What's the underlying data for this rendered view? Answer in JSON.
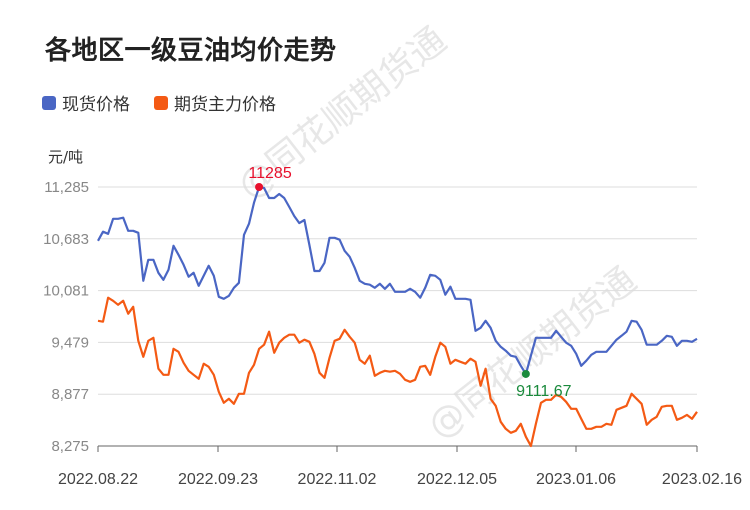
{
  "title": "各地区一级豆油均价走势",
  "legend": [
    {
      "label": "现货价格",
      "color": "#4a66c4"
    },
    {
      "label": "期货主力价格",
      "color": "#f45a14"
    }
  ],
  "unit": "元/吨",
  "watermark": "@同花顺期货通",
  "annotations": {
    "max": {
      "label": "11285",
      "color": "#e8102c"
    },
    "min": {
      "label": "9111.67",
      "color": "#1a8a3c"
    }
  },
  "chart_data": {
    "type": "line",
    "title": "各地区一级豆油均价走势",
    "xlabel": "",
    "ylabel": "元/吨",
    "ylim": [
      8275,
      11285
    ],
    "yticks": [
      "11,285",
      "10,683",
      "10,081",
      "9,479",
      "8,877",
      "8,275"
    ],
    "ytick_values": [
      11285,
      10683,
      10081,
      9479,
      8877,
      8275
    ],
    "xticks": [
      "2022.08.22",
      "2022.09.23",
      "2022.11.02",
      "2022.12.05",
      "2023.01.06",
      "2023.02.16"
    ],
    "grid": true,
    "legend_position": "top-left",
    "series": [
      {
        "name": "现货价格",
        "color": "#4a66c4",
        "max": 11285,
        "min": 9111.67,
        "values": [
          10660,
          10765,
          10741,
          10916,
          10916,
          10928,
          10776,
          10776,
          10753,
          10195,
          10439,
          10439,
          10288,
          10207,
          10323,
          10602,
          10497,
          10381,
          10242,
          10288,
          10137,
          10253,
          10369,
          10253,
          10009,
          9986,
          10021,
          10114,
          10172,
          10730,
          10858,
          11102,
          11285,
          11273,
          11157,
          11157,
          11204,
          11157,
          11052,
          10947,
          10866,
          10901,
          10611,
          10309,
          10309,
          10404,
          10695,
          10695,
          10672,
          10544,
          10474,
          10346,
          10195,
          10160,
          10149,
          10114,
          10160,
          10102,
          10160,
          10067,
          10067,
          10067,
          10102,
          10067,
          9998,
          10114,
          10265,
          10253,
          10207,
          10033,
          10126,
          9986,
          9986,
          9986,
          9974,
          9614,
          9649,
          9730,
          9649,
          9498,
          9428,
          9382,
          9324,
          9312,
          9207,
          9112,
          9324,
          9533,
          9533,
          9533,
          9533,
          9614,
          9544,
          9475,
          9440,
          9347,
          9207,
          9266,
          9335,
          9370,
          9370,
          9370,
          9440,
          9510,
          9556,
          9603,
          9730,
          9719,
          9626,
          9452,
          9452,
          9452,
          9498,
          9556,
          9544,
          9440,
          9498,
          9498,
          9486,
          9521
        ]
      },
      {
        "name": "期货主力价格",
        "color": "#f45a14",
        "values": [
          9730,
          9719,
          9998,
          9963,
          9916,
          9963,
          9812,
          9893,
          9498,
          9312,
          9498,
          9533,
          9173,
          9103,
          9103,
          9405,
          9370,
          9242,
          9149,
          9103,
          9056,
          9231,
          9196,
          9103,
          8905,
          8777,
          8824,
          8766,
          8882,
          8882,
          9126,
          9219,
          9405,
          9452,
          9603,
          9358,
          9475,
          9533,
          9568,
          9568,
          9475,
          9510,
          9486,
          9347,
          9126,
          9068,
          9300,
          9498,
          9521,
          9626,
          9544,
          9475,
          9277,
          9231,
          9324,
          9091,
          9126,
          9149,
          9138,
          9149,
          9114,
          9044,
          9021,
          9044,
          9196,
          9207,
          9103,
          9312,
          9475,
          9428,
          9231,
          9277,
          9254,
          9231,
          9289,
          9254,
          8975,
          9173,
          8824,
          8742,
          8556,
          8475,
          8428,
          8452,
          8533,
          8382,
          8275,
          8533,
          8777,
          8812,
          8812,
          8870,
          8847,
          8789,
          8707,
          8707,
          8591,
          8475,
          8475,
          8498,
          8498,
          8533,
          8521,
          8696,
          8719,
          8742,
          8882,
          8824,
          8766,
          8521,
          8579,
          8614,
          8731,
          8742,
          8742,
          8579,
          8603,
          8637,
          8591,
          8672
        ]
      }
    ]
  }
}
